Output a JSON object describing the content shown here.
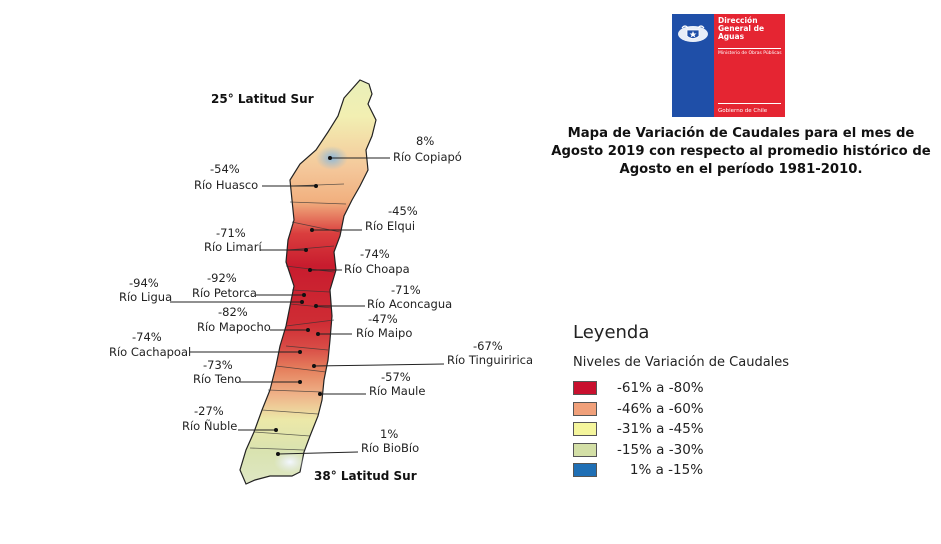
{
  "logo": {
    "title": "Dirección General de Aguas",
    "subtitle": "Ministerio de Obras Públicas",
    "footer": "Gobierno de Chile",
    "colors": {
      "blue": "#1f4fa8",
      "red": "#e52532"
    },
    "icon": "chilean-coat-of-arms"
  },
  "title": "Mapa de Variación de Caudales para el mes de Agosto 2019 con respecto al promedio histórico de Agosto en el período 1981-2010.",
  "latitudes": {
    "north": "25° Latitud Sur",
    "south": "38° Latitud Sur"
  },
  "rivers": [
    {
      "name": "Río Copiapó",
      "value": "8%"
    },
    {
      "name": "Río Huasco",
      "value": "-54%"
    },
    {
      "name": "Río Elqui",
      "value": "-45%"
    },
    {
      "name": "Río Limarí",
      "value": "-71%"
    },
    {
      "name": "Río Choapa",
      "value": "-74%"
    },
    {
      "name": "Río Ligua",
      "value": "-94%"
    },
    {
      "name": "Río Petorca",
      "value": "-92%"
    },
    {
      "name": "Río Aconcagua",
      "value": "-71%"
    },
    {
      "name": "Río Mapocho",
      "value": "-82%"
    },
    {
      "name": "Río Maipo",
      "value": "-47%"
    },
    {
      "name": "Río Cachapoal",
      "value": "-74%"
    },
    {
      "name": "Río Tinguiririca",
      "value": "-67%"
    },
    {
      "name": "Río Teno",
      "value": "-73%"
    },
    {
      "name": "Río Maule",
      "value": "-57%"
    },
    {
      "name": "Río Ñuble",
      "value": "-27%"
    },
    {
      "name": "Río BioBío",
      "value": "1%"
    }
  ],
  "legend": {
    "title": "Leyenda",
    "subtitle": "Niveles de Variación de Caudales",
    "items": [
      {
        "label": "-61% a -80%",
        "color": "#c8102e"
      },
      {
        "label": "-46% a -60%",
        "color": "#f0a07a"
      },
      {
        "label": "-31% a -45%",
        "color": "#f4f59c"
      },
      {
        "label": "-15% a -30%",
        "color": "#d3dfa6"
      },
      {
        "label": "   1% a -15%",
        "color": "#1f6fb5"
      }
    ]
  }
}
